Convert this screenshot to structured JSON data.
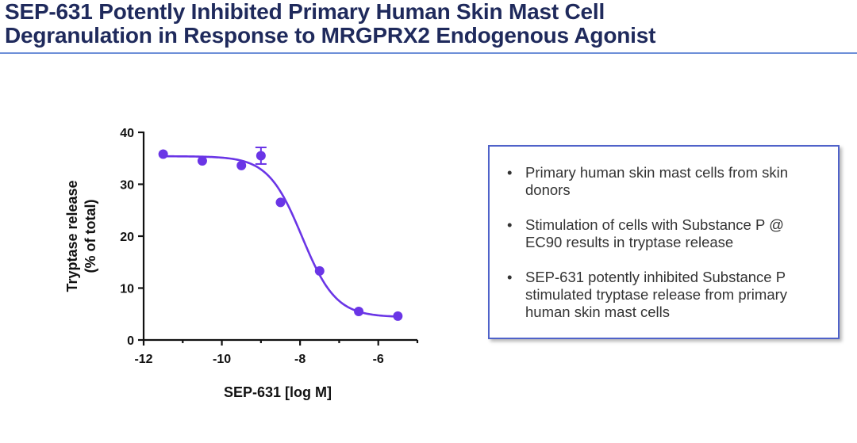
{
  "slide": {
    "title_line1": "SEP-631 Potently Inhibited Primary Human Skin Mast Cell",
    "title_line2": "Degranulation in Response to MRGPRX2 Endogenous Agonist",
    "title_color": "#1f2a5c",
    "rule_color": "#6d8fd8"
  },
  "info_box": {
    "border_color": "#4f62c9",
    "bullet_glyph": "•",
    "bullets": [
      {
        "line1": "Primary human skin mast cells from skin",
        "line2": "donors"
      },
      {
        "line1": "Stimulation of cells with Substance P @",
        "line2": "EC90 results in tryptase release"
      },
      {
        "line1": "SEP-631 potently inhibited Substance P",
        "line2": "stimulated tryptase release from primary",
        "line3": "human skin mast cells"
      }
    ]
  },
  "chart_data": {
    "type": "scatter",
    "title": "",
    "xlabel": "SEP-631 [log M]",
    "ylabel_line1": "Tryptase release",
    "ylabel_line2": "(% of total)",
    "xlim": [
      -12,
      -5
    ],
    "ylim": [
      0,
      40
    ],
    "xticks": [
      -12,
      -10,
      -8,
      -6
    ],
    "yticks": [
      0,
      10,
      20,
      30,
      40
    ],
    "xtick_labels": [
      "-12",
      "-10",
      "-8",
      "-6"
    ],
    "ytick_labels": [
      "0",
      "10",
      "20",
      "30",
      "40"
    ],
    "color": "#6a35e6",
    "series": [
      {
        "name": "SEP-631",
        "x": [
          -11.5,
          -10.5,
          -9.5,
          -9.0,
          -8.5,
          -7.5,
          -6.5,
          -5.5
        ],
        "y": [
          35.8,
          34.5,
          33.6,
          35.5,
          26.5,
          13.3,
          5.5,
          4.6
        ],
        "error": [
          0,
          0,
          0,
          1.6,
          0,
          0,
          0,
          0
        ]
      }
    ],
    "fit": {
      "model": "four-parameter logistic",
      "top": 35.4,
      "bottom": 4.4,
      "log_ic50": -7.95,
      "hill_slope": -1.0
    }
  }
}
